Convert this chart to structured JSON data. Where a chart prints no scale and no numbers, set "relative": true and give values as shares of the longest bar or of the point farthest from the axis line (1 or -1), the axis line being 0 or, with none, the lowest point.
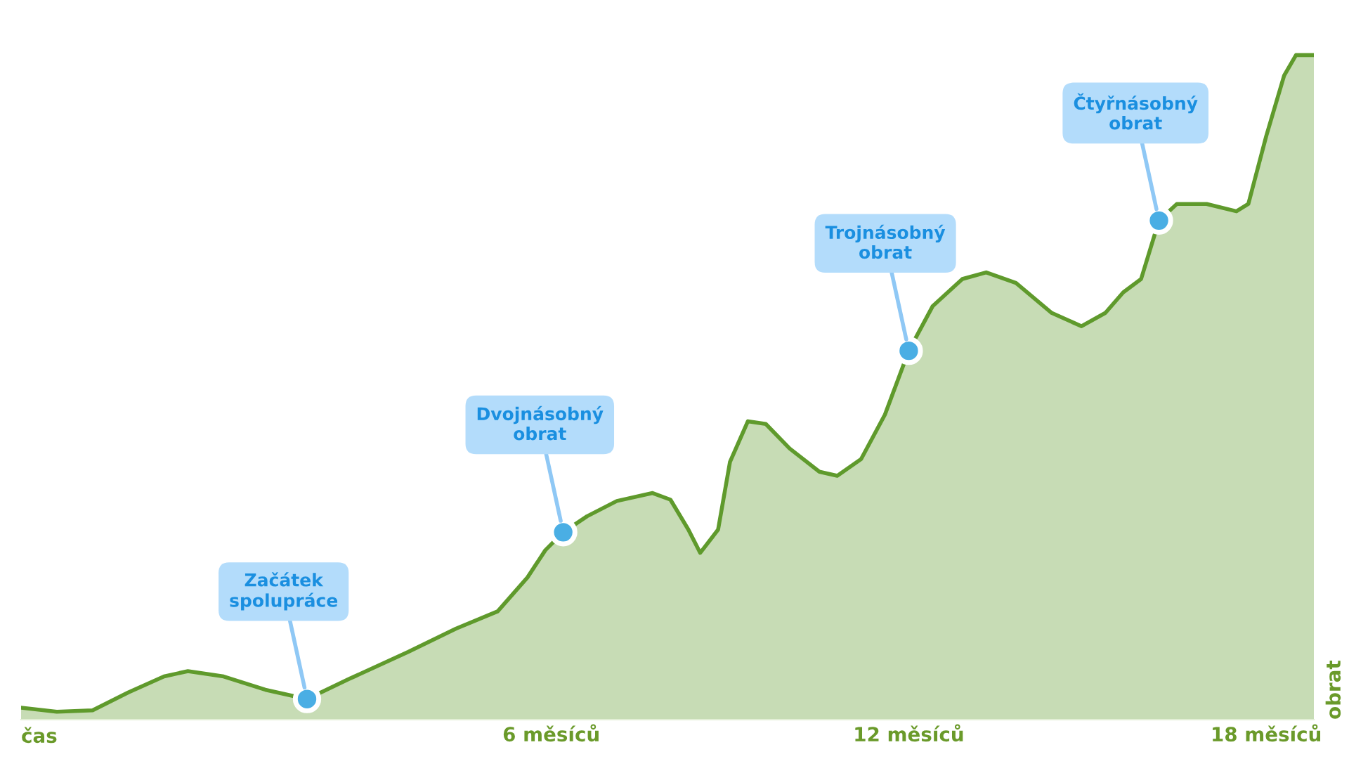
{
  "chart_data": {
    "type": "area",
    "relative": true,
    "xlabel": "čas",
    "ylabel": "obrat",
    "x": [
      -2.9,
      -2.3,
      -1.7,
      -1.1,
      -0.5,
      -0.1,
      0.5,
      1.2,
      1.9,
      2.6,
      3.6,
      4.4,
      5.1,
      5.6,
      5.9,
      6.2,
      6.6,
      7.1,
      7.7,
      8.0,
      8.3,
      8.5,
      8.8,
      9.0,
      9.3,
      9.6,
      10.0,
      10.5,
      10.8,
      11.2,
      11.6,
      12.0,
      12.4,
      12.9,
      13.3,
      13.8,
      14.4,
      14.9,
      15.3,
      15.6,
      15.9,
      16.2,
      16.5,
      17.0,
      17.5,
      17.7,
      18.0,
      18.3,
      18.5,
      18.8
    ],
    "series": [
      {
        "color": "#5f9a2c",
        "values": [
          0.018,
          0.012,
          0.014,
          0.041,
          0.065,
          0.073,
          0.065,
          0.045,
          0.031,
          0.061,
          0.102,
          0.137,
          0.163,
          0.214,
          0.255,
          0.282,
          0.306,
          0.329,
          0.341,
          0.331,
          0.286,
          0.251,
          0.286,
          0.388,
          0.449,
          0.445,
          0.408,
          0.373,
          0.367,
          0.392,
          0.459,
          0.555,
          0.622,
          0.663,
          0.673,
          0.657,
          0.612,
          0.592,
          0.612,
          0.643,
          0.663,
          0.751,
          0.776,
          0.776,
          0.765,
          0.776,
          0.878,
          0.969,
          1.0,
          1.0
        ]
      }
    ],
    "xlim": [
      -2.9,
      18.8
    ],
    "xticks": [
      {
        "value": 6,
        "label": "6 měsíců"
      },
      {
        "value": 12,
        "label": "12 měsíců"
      },
      {
        "value": 18,
        "label": "18 měsíců"
      }
    ],
    "grid": false,
    "legend": false,
    "annotations": [
      {
        "text": "Začátek\nspolupráce",
        "x": 1.9,
        "y": 0.031
      },
      {
        "text": "Dvojnásobný\nobrat",
        "x": 6.2,
        "y": 0.282
      },
      {
        "text": "Trojnásobný\nobrat",
        "x": 12.0,
        "y": 0.555
      },
      {
        "text": "Čtyřnásobný\nobrat",
        "x": 16.2,
        "y": 0.751
      }
    ]
  }
}
